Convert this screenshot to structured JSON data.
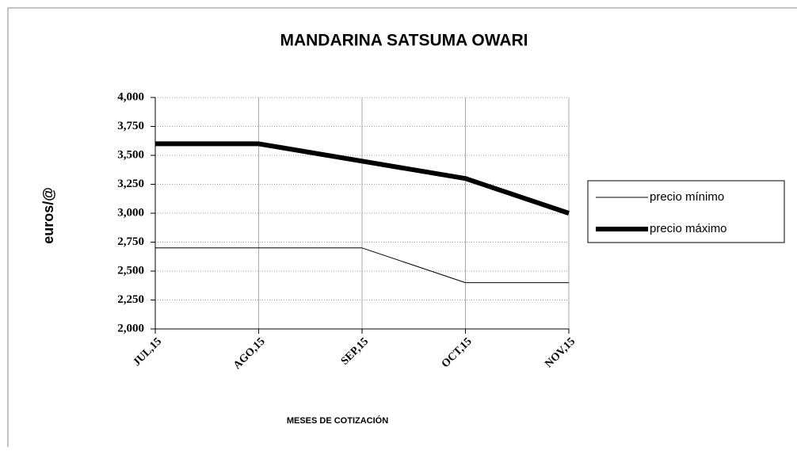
{
  "chart_data": {
    "type": "line",
    "title": "MANDARINA SATSUMA OWARI",
    "y_label": "euros/@",
    "x_label": "MESES DE COTIZACIÓN",
    "categories": [
      "JUL,15",
      "AGO,15",
      "SEP,15",
      "OCT,15",
      "NOV,15"
    ],
    "series": [
      {
        "name": "precio mínimo",
        "color": "#000000",
        "width": 1,
        "values": [
          2.7,
          2.7,
          2.7,
          2.4,
          2.4
        ]
      },
      {
        "name": "precio máximo",
        "color": "#000000",
        "width": 6,
        "values": [
          3.6,
          3.6,
          3.45,
          3.3,
          3.0
        ]
      }
    ],
    "ylim": [
      2,
      4
    ],
    "yticks": [
      {
        "value": 2,
        "label": "2,000"
      },
      {
        "value": 2.25,
        "label": "2,250"
      },
      {
        "value": 2.5,
        "label": "2,500"
      },
      {
        "value": 2.75,
        "label": "2,750"
      },
      {
        "value": 3,
        "label": "3,000"
      },
      {
        "value": 3.25,
        "label": "3,250"
      },
      {
        "value": 3.5,
        "label": "3,500"
      },
      {
        "value": 3.75,
        "label": "3,750"
      },
      {
        "value": 4,
        "label": "4,000"
      }
    ],
    "grid": true,
    "legend": "right"
  }
}
